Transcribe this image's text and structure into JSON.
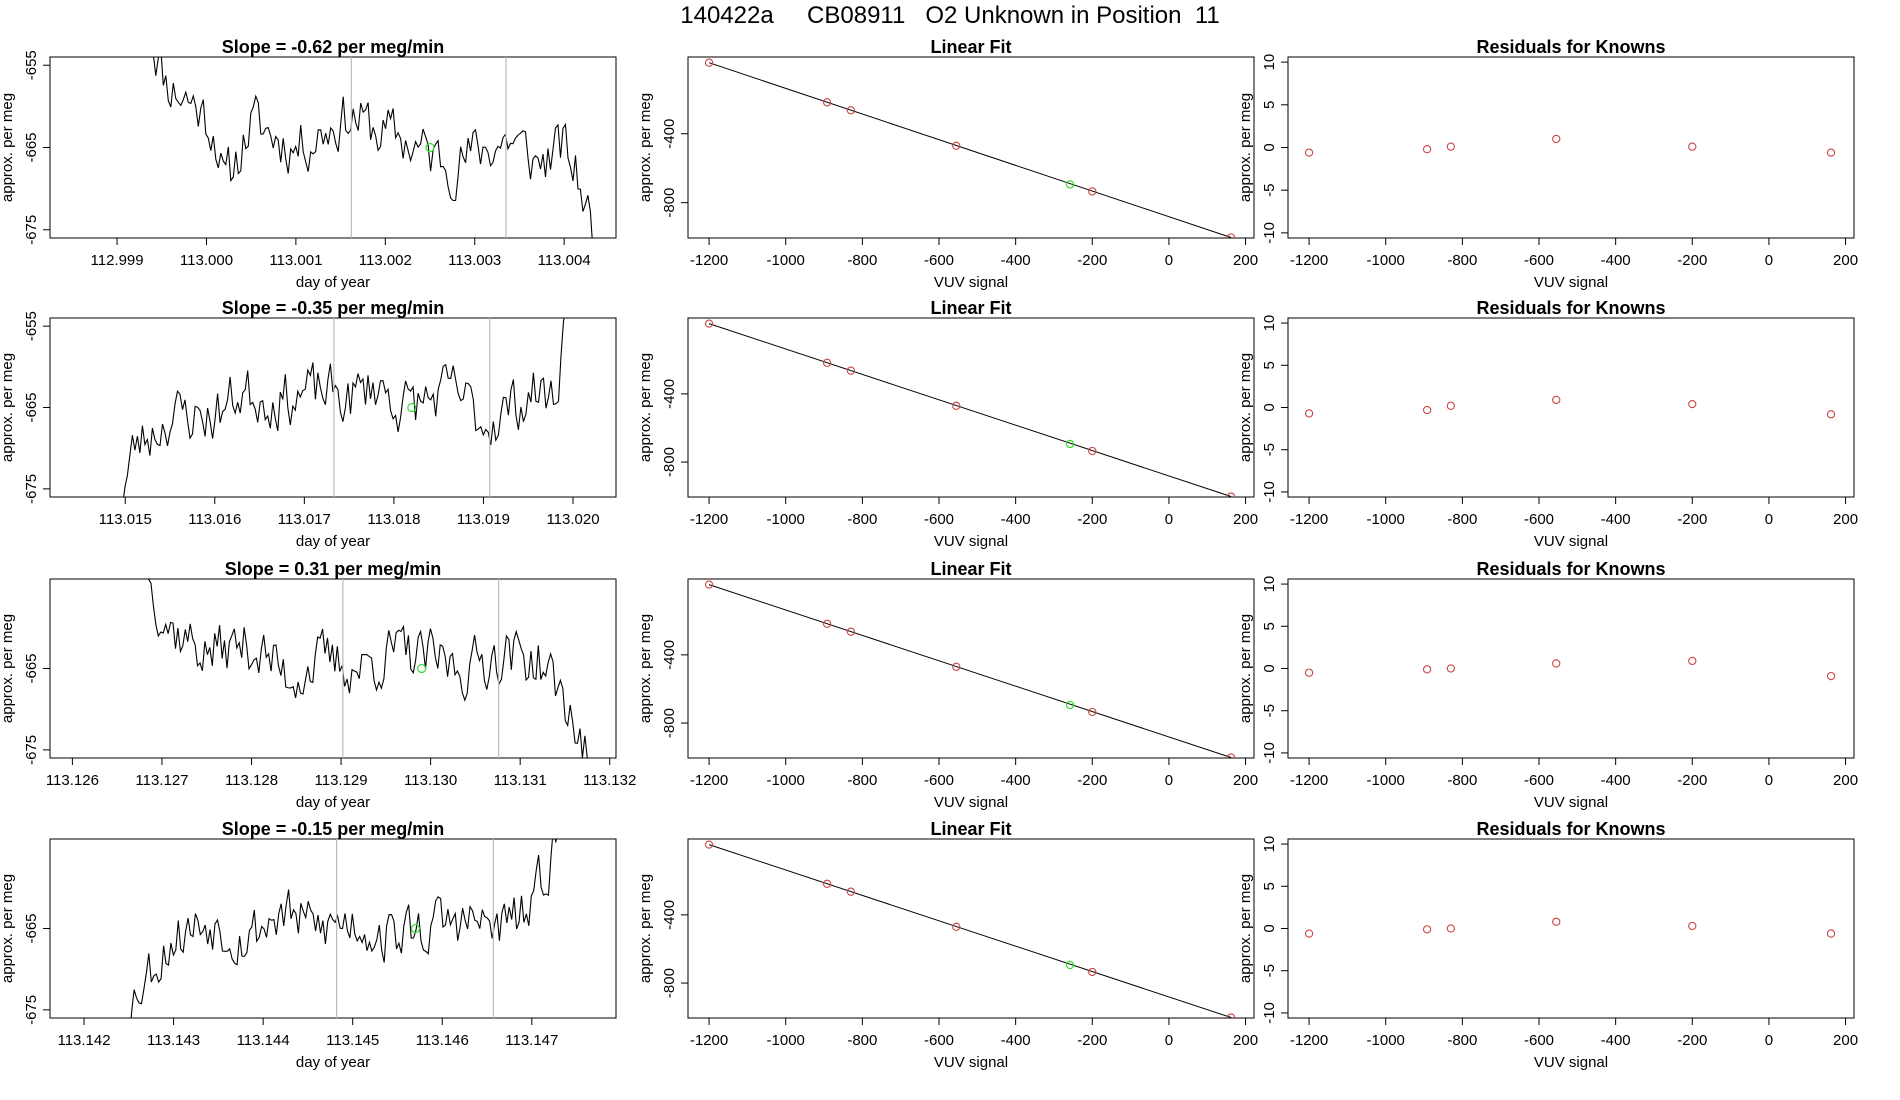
{
  "figure_title": "140422a     CB08911   O2 Unknown in Position  11",
  "colors": {
    "trace": "#000000",
    "unknown_point": "#33dd33",
    "known_point": "#cc4444",
    "vline": "#bbbbbb",
    "frame": "#000000"
  },
  "chart_data": [
    {
      "type": "line",
      "title": "Slope =  -0.62  per meg/min",
      "xlabel": "day of year",
      "ylabel": "approx. per meg",
      "x_ticks": [
        "112.999",
        "113.000",
        "113.001",
        "113.002",
        "113.003",
        "113.004"
      ],
      "y_ticks": [
        "-655",
        "-665",
        "-675"
      ],
      "xlim": [
        112.99825,
        113.00458
      ],
      "ylim": [
        -676,
        -654
      ],
      "trace_x_range": [
        112.99935,
        113.00435
      ],
      "trace_control": [
        [
          112.99935,
          -650
        ],
        [
          112.99955,
          -657
        ],
        [
          112.9999,
          -660
        ],
        [
          113.0001,
          -663
        ],
        [
          113.0002,
          -670
        ],
        [
          113.0005,
          -662
        ],
        [
          113.001,
          -665
        ],
        [
          113.0013,
          -663
        ],
        [
          113.0016,
          -661
        ],
        [
          113.0019,
          -663
        ],
        [
          113.0022,
          -664
        ],
        [
          113.0025,
          -666
        ],
        [
          113.0028,
          -667
        ],
        [
          113.0031,
          -665
        ],
        [
          113.0034,
          -664
        ],
        [
          113.0037,
          -667
        ],
        [
          113.004,
          -665
        ],
        [
          113.0042,
          -670
        ],
        [
          113.00435,
          -677
        ]
      ],
      "noise_amp": 3.5,
      "seed": 11,
      "vlines": [
        113.00162,
        113.00335
      ],
      "unknown_point": {
        "x": 113.0025,
        "y": -665
      },
      "series": [
        {
          "values": []
        }
      ]
    },
    {
      "type": "scatter",
      "title": "Linear Fit",
      "xlabel": "VUV signal",
      "ylabel": "approx. per meg",
      "x_ticks": [
        "-1200",
        "-1000",
        "-800",
        "-600",
        "-400",
        "-200",
        "0",
        "200"
      ],
      "y_ticks": [
        "-400",
        "-800"
      ],
      "xlim": [
        -1255,
        222
      ],
      "ylim": [
        -1005,
        45
      ],
      "known_points": [
        [
          -1200,
          12
        ],
        [
          -892,
          -218
        ],
        [
          -830,
          -264
        ],
        [
          -555,
          -470
        ],
        [
          -200,
          -735
        ],
        [
          162,
          -1002
        ]
      ],
      "unknown_point": {
        "x": -258,
        "y": -694
      },
      "fit_line": [
        [
          -1200,
          12
        ],
        [
          162,
          -1002
        ]
      ]
    },
    {
      "type": "scatter",
      "title": "Residuals for Knowns",
      "xlabel": "VUV signal",
      "ylabel": "approx. per meg",
      "x_ticks": [
        "-1200",
        "-1000",
        "-800",
        "-600",
        "-400",
        "-200",
        "0",
        "200"
      ],
      "y_ticks": [
        "10",
        "5",
        "0",
        "-5",
        "-10"
      ],
      "xlim": [
        -1255,
        222
      ],
      "ylim": [
        -10.6,
        10.6
      ],
      "points": [
        [
          -1200,
          -0.6
        ],
        [
          -892,
          -0.2
        ],
        [
          -830,
          0.1
        ],
        [
          -555,
          1.0
        ],
        [
          -200,
          0.1
        ],
        [
          162,
          -0.6
        ]
      ]
    },
    {
      "type": "line",
      "title": "Slope =  -0.35  per meg/min",
      "xlabel": "day of year",
      "ylabel": "approx. per meg",
      "x_ticks": [
        "113.015",
        "113.016",
        "113.017",
        "113.018",
        "113.019",
        "113.020"
      ],
      "y_ticks": [
        "-655",
        "-665",
        "-675"
      ],
      "xlim": [
        113.01416,
        113.02048
      ],
      "ylim": [
        -676,
        -654
      ],
      "trace_x_range": [
        113.01494,
        113.01995
      ],
      "trace_control": [
        [
          113.01494,
          -677
        ],
        [
          113.0151,
          -670
        ],
        [
          113.0155,
          -666
        ],
        [
          113.016,
          -666
        ],
        [
          113.0163,
          -663
        ],
        [
          113.0167,
          -664
        ],
        [
          113.0172,
          -663
        ],
        [
          113.0175,
          -664
        ],
        [
          113.0178,
          -662
        ],
        [
          113.0181,
          -665
        ],
        [
          113.0184,
          -664
        ],
        [
          113.0187,
          -663
        ],
        [
          113.019,
          -667
        ],
        [
          113.0193,
          -665
        ],
        [
          113.0196,
          -663
        ],
        [
          113.0198,
          -664
        ],
        [
          113.01995,
          -651
        ]
      ],
      "noise_amp": 3.5,
      "seed": 23,
      "vlines": [
        113.01733,
        113.01907
      ],
      "unknown_point": {
        "x": 113.0182,
        "y": -665
      },
      "series": [
        {
          "values": []
        }
      ]
    },
    {
      "type": "scatter",
      "title": "Linear Fit",
      "xlabel": "VUV signal",
      "ylabel": "approx. per meg",
      "x_ticks": [
        "-1200",
        "-1000",
        "-800",
        "-600",
        "-400",
        "-200",
        "0",
        "200"
      ],
      "y_ticks": [
        "-400",
        "-800"
      ],
      "xlim": [
        -1255,
        222
      ],
      "ylim": [
        -1005,
        45
      ],
      "known_points": [
        [
          -1200,
          12
        ],
        [
          -892,
          -218
        ],
        [
          -830,
          -264
        ],
        [
          -555,
          -470
        ],
        [
          -200,
          -735
        ],
        [
          162,
          -1002
        ]
      ],
      "unknown_point": {
        "x": -258,
        "y": -694
      },
      "fit_line": [
        [
          -1200,
          12
        ],
        [
          162,
          -1002
        ]
      ]
    },
    {
      "type": "scatter",
      "title": "Residuals for Knowns",
      "xlabel": "VUV signal",
      "ylabel": "approx. per meg",
      "x_ticks": [
        "-1200",
        "-1000",
        "-800",
        "-600",
        "-400",
        "-200",
        "0",
        "200"
      ],
      "y_ticks": [
        "10",
        "5",
        "0",
        "-5",
        "-10"
      ],
      "xlim": [
        -1255,
        222
      ],
      "ylim": [
        -10.6,
        10.6
      ],
      "points": [
        [
          -1200,
          -0.7
        ],
        [
          -892,
          -0.3
        ],
        [
          -830,
          0.2
        ],
        [
          -555,
          0.9
        ],
        [
          -200,
          0.4
        ],
        [
          162,
          -0.8
        ]
      ]
    },
    {
      "type": "line",
      "title": "Slope =  0.31  per meg/min",
      "xlabel": "day of year",
      "ylabel": "approx. per meg",
      "x_ticks": [
        "113.126",
        "113.127",
        "113.128",
        "113.129",
        "113.130",
        "113.131",
        "113.132"
      ],
      "y_ticks": [
        "-665",
        "-675"
      ],
      "xlim": [
        113.12575,
        113.13207
      ],
      "ylim": [
        -676,
        -654
      ],
      "trace_x_range": [
        113.12685,
        113.13175
      ],
      "trace_control": [
        [
          113.12685,
          -654
        ],
        [
          113.1271,
          -660
        ],
        [
          113.1275,
          -663
        ],
        [
          113.128,
          -662
        ],
        [
          113.1284,
          -666
        ],
        [
          113.1288,
          -664
        ],
        [
          113.1292,
          -665
        ],
        [
          113.1296,
          -663
        ],
        [
          113.13,
          -664
        ],
        [
          113.1304,
          -665
        ],
        [
          113.1308,
          -663
        ],
        [
          113.1312,
          -664
        ],
        [
          113.1315,
          -669
        ],
        [
          113.13175,
          -676
        ]
      ],
      "noise_amp": 3.5,
      "seed": 37,
      "vlines": [
        113.12902,
        113.13076
      ],
      "unknown_point": {
        "x": 113.1299,
        "y": -665
      },
      "series": [
        {
          "values": []
        }
      ]
    },
    {
      "type": "scatter",
      "title": "Linear Fit",
      "xlabel": "VUV signal",
      "ylabel": "approx. per meg",
      "x_ticks": [
        "-1200",
        "-1000",
        "-800",
        "-600",
        "-400",
        "-200",
        "0",
        "200"
      ],
      "y_ticks": [
        "-400",
        "-800"
      ],
      "xlim": [
        -1255,
        222
      ],
      "ylim": [
        -1005,
        45
      ],
      "known_points": [
        [
          -1200,
          12
        ],
        [
          -892,
          -218
        ],
        [
          -830,
          -264
        ],
        [
          -555,
          -470
        ],
        [
          -200,
          -735
        ],
        [
          162,
          -1002
        ]
      ],
      "unknown_point": {
        "x": -258,
        "y": -694
      },
      "fit_line": [
        [
          -1200,
          12
        ],
        [
          162,
          -1002
        ]
      ]
    },
    {
      "type": "scatter",
      "title": "Residuals for Knowns",
      "xlabel": "VUV signal",
      "ylabel": "approx. per meg",
      "x_ticks": [
        "-1200",
        "-1000",
        "-800",
        "-600",
        "-400",
        "-200",
        "0",
        "200"
      ],
      "y_ticks": [
        "10",
        "5",
        "0",
        "-5",
        "-10"
      ],
      "xlim": [
        -1255,
        222
      ],
      "ylim": [
        -10.6,
        10.6
      ],
      "points": [
        [
          -1200,
          -0.5
        ],
        [
          -892,
          -0.1
        ],
        [
          -830,
          0.0
        ],
        [
          -555,
          0.6
        ],
        [
          -200,
          0.9
        ],
        [
          162,
          -0.9
        ]
      ]
    },
    {
      "type": "line",
      "title": "Slope =  -0.15  per meg/min",
      "xlabel": "day of year",
      "ylabel": "approx. per meg",
      "x_ticks": [
        "113.142",
        "113.143",
        "113.144",
        "113.145",
        "113.146",
        "113.147"
      ],
      "y_ticks": [
        "-665",
        "-675"
      ],
      "xlim": [
        113.14162,
        113.14794
      ],
      "ylim": [
        -676,
        -654
      ],
      "trace_x_range": [
        113.14245,
        113.14735
      ],
      "trace_control": [
        [
          113.14245,
          -677
        ],
        [
          113.1426,
          -672
        ],
        [
          113.143,
          -666
        ],
        [
          113.1434,
          -664
        ],
        [
          113.1438,
          -666
        ],
        [
          113.1442,
          -663
        ],
        [
          113.1446,
          -665
        ],
        [
          113.145,
          -664
        ],
        [
          113.1454,
          -666
        ],
        [
          113.1458,
          -665
        ],
        [
          113.1462,
          -664
        ],
        [
          113.1466,
          -665
        ],
        [
          113.147,
          -663
        ],
        [
          113.14735,
          -651
        ]
      ],
      "noise_amp": 3.5,
      "seed": 53,
      "vlines": [
        113.14482,
        113.14657
      ],
      "unknown_point": {
        "x": 113.1457,
        "y": -665
      },
      "series": [
        {
          "values": []
        }
      ]
    },
    {
      "type": "scatter",
      "title": "Linear Fit",
      "xlabel": "VUV signal",
      "ylabel": "approx. per meg",
      "x_ticks": [
        "-1200",
        "-1000",
        "-800",
        "-600",
        "-400",
        "-200",
        "0",
        "200"
      ],
      "y_ticks": [
        "-400",
        "-800"
      ],
      "xlim": [
        -1255,
        222
      ],
      "ylim": [
        -1005,
        45
      ],
      "known_points": [
        [
          -1200,
          12
        ],
        [
          -892,
          -218
        ],
        [
          -830,
          -264
        ],
        [
          -555,
          -470
        ],
        [
          -200,
          -735
        ],
        [
          162,
          -1002
        ]
      ],
      "unknown_point": {
        "x": -258,
        "y": -694
      },
      "fit_line": [
        [
          -1200,
          12
        ],
        [
          162,
          -1002
        ]
      ]
    },
    {
      "type": "scatter",
      "title": "Residuals for Knowns",
      "xlabel": "VUV signal",
      "ylabel": "approx. per meg",
      "x_ticks": [
        "-1200",
        "-1000",
        "-800",
        "-600",
        "-400",
        "-200",
        "0",
        "200"
      ],
      "y_ticks": [
        "10",
        "5",
        "0",
        "-5",
        "-10"
      ],
      "xlim": [
        -1255,
        222
      ],
      "ylim": [
        -10.6,
        10.6
      ],
      "points": [
        [
          -1200,
          -0.6
        ],
        [
          -892,
          -0.1
        ],
        [
          -830,
          0.0
        ],
        [
          -555,
          0.8
        ],
        [
          -200,
          0.3
        ],
        [
          162,
          -0.6
        ]
      ]
    }
  ]
}
